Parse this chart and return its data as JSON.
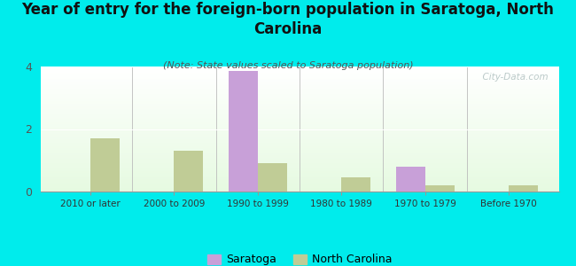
{
  "categories": [
    "2010 or later",
    "2000 to 2009",
    "1990 to 1999",
    "1980 to 1989",
    "1970 to 1979",
    "Before 1970"
  ],
  "saratoga_values": [
    0,
    0,
    3.85,
    0,
    0.8,
    0
  ],
  "nc_values": [
    1.7,
    1.3,
    0.9,
    0.45,
    0.2,
    0.2
  ],
  "saratoga_color": "#c8a0d8",
  "nc_color": "#c0cc96",
  "title": "Year of entry for the foreign-born population in Saratoga, North\nCarolina",
  "subtitle": "(Note: State values scaled to Saratoga population)",
  "ylim": [
    0,
    4
  ],
  "yticks": [
    0,
    2,
    4
  ],
  "background_color": "#00ecec",
  "watermark": "  City-Data.com",
  "legend_saratoga": "Saratoga",
  "legend_nc": "North Carolina",
  "bar_width": 0.35,
  "title_fontsize": 12,
  "subtitle_fontsize": 8
}
